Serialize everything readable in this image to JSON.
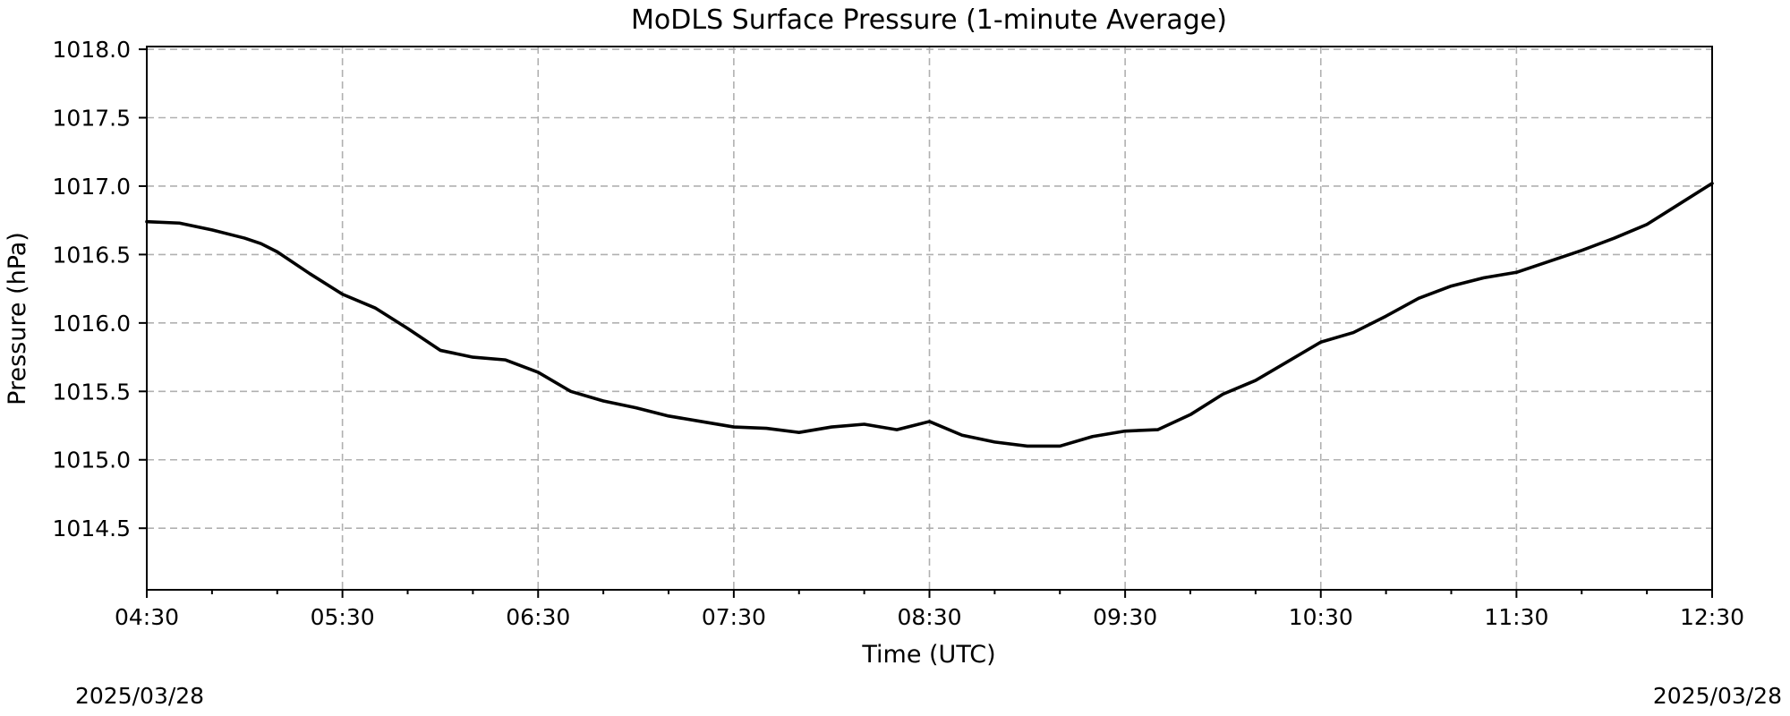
{
  "chart_data": {
    "type": "line",
    "title": "MoDLS Surface Pressure (1-minute Average)",
    "xlabel": "Time (UTC)",
    "ylabel": "Pressure (hPa)",
    "date_start": "2025/03/28",
    "date_end": "2025/03/28",
    "x_ticks": [
      "04:30",
      "05:30",
      "06:30",
      "07:30",
      "08:30",
      "09:30",
      "10:30",
      "11:30",
      "12:30"
    ],
    "y_ticks": [
      "1014.5",
      "1015.0",
      "1015.5",
      "1016.0",
      "1016.5",
      "1017.0",
      "1017.5",
      "1018.0"
    ],
    "ylim": [
      1014.05,
      1018.02
    ],
    "xlim": [
      "04:30",
      "12:30"
    ],
    "grid": true,
    "series": [
      {
        "color": "#000000",
        "x": [
          "04:30",
          "04:40",
          "04:50",
          "05:00",
          "05:05",
          "05:10",
          "05:20",
          "05:30",
          "05:40",
          "05:50",
          "06:00",
          "06:10",
          "06:20",
          "06:30",
          "06:40",
          "06:50",
          "07:00",
          "07:10",
          "07:20",
          "07:30",
          "07:40",
          "07:50",
          "08:00",
          "08:10",
          "08:20",
          "08:30",
          "08:40",
          "08:50",
          "09:00",
          "09:10",
          "09:20",
          "09:30",
          "09:40",
          "09:50",
          "10:00",
          "10:10",
          "10:20",
          "10:30",
          "10:40",
          "10:50",
          "11:00",
          "11:10",
          "11:20",
          "11:30",
          "11:40",
          "11:50",
          "12:00",
          "12:10",
          "12:20",
          "12:30"
        ],
        "values": [
          1016.74,
          1016.73,
          1016.68,
          1016.62,
          1016.58,
          1016.52,
          1016.36,
          1016.21,
          1016.11,
          1015.96,
          1015.8,
          1015.75,
          1015.73,
          1015.64,
          1015.5,
          1015.43,
          1015.38,
          1015.32,
          1015.28,
          1015.24,
          1015.23,
          1015.2,
          1015.24,
          1015.26,
          1015.22,
          1015.28,
          1015.18,
          1015.13,
          1015.1,
          1015.1,
          1015.17,
          1015.21,
          1015.22,
          1015.33,
          1015.48,
          1015.58,
          1015.72,
          1015.86,
          1015.93,
          1016.05,
          1016.18,
          1016.27,
          1016.33,
          1016.37,
          1016.45,
          1016.53,
          1016.62,
          1016.72,
          1016.87,
          1017.02
        ]
      }
    ]
  }
}
